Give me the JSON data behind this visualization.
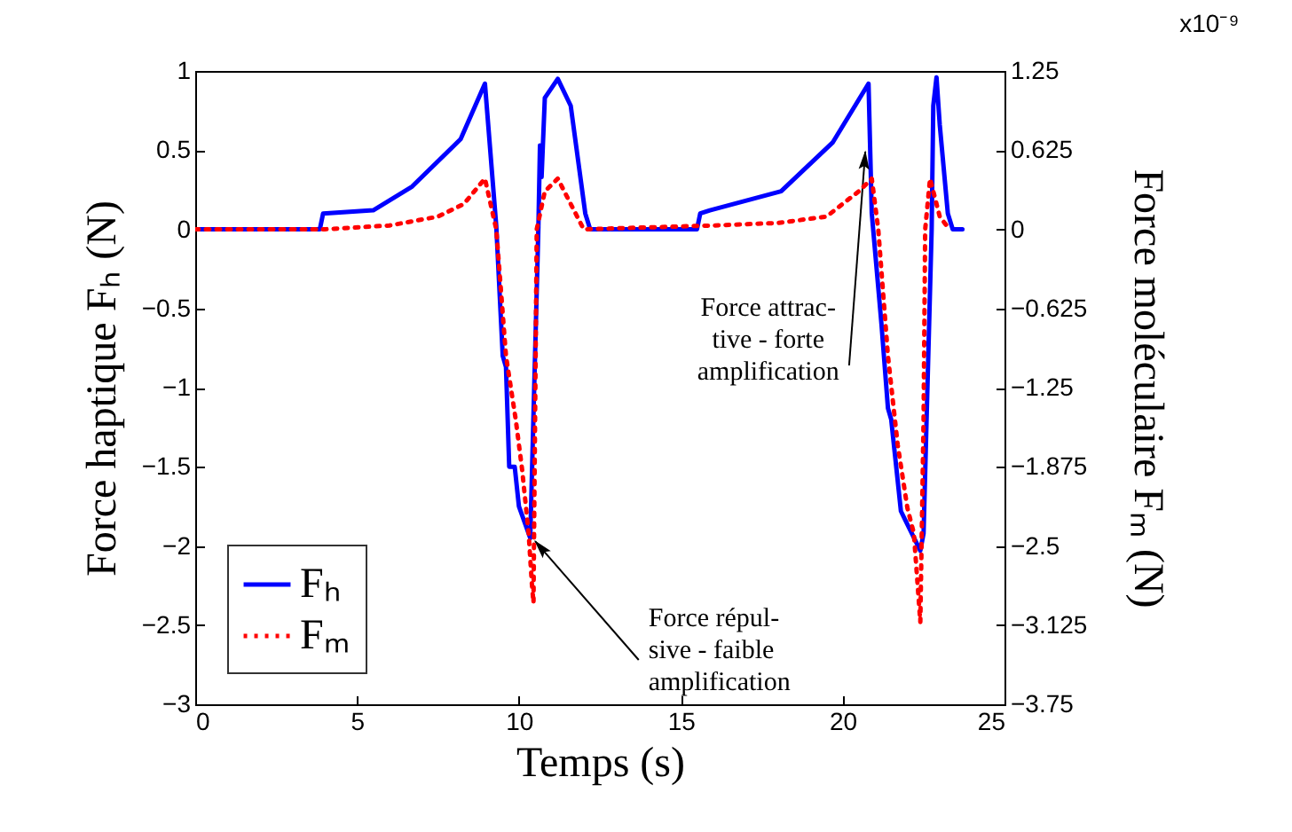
{
  "chart_data": {
    "type": "line",
    "xlabel": "Temps (s)",
    "ylabel": "Force haptique Fₕ (N)",
    "y2label": "Force moléculaire Fₘ (N)",
    "xlim": [
      0,
      25
    ],
    "xticks": [
      0,
      5,
      10,
      15,
      20,
      25
    ],
    "ylim": [
      -3,
      1
    ],
    "yticks": [
      -3,
      -2.5,
      -2,
      -1.5,
      -1,
      -0.5,
      0,
      0.5,
      1
    ],
    "y2lim": [
      -3.75,
      1.25
    ],
    "y2ticks": [
      -3.75,
      -3.125,
      -2.5,
      -1.875,
      -1.25,
      -0.625,
      0,
      0.625,
      1.25
    ],
    "legend": "bottom left",
    "grid": false,
    "series": [
      {
        "name": "Fₕ",
        "color": "#0000ff",
        "line_style": "solid",
        "x": [
          0,
          3.85,
          3.95,
          5.5,
          6.7,
          8.2,
          8.95,
          9.3,
          9.5,
          9.6,
          9.7,
          9.87,
          10.0,
          10.35,
          10.6,
          10.65,
          10.7,
          10.8,
          11.2,
          11.6,
          12.05,
          12.2,
          15.5,
          15.6,
          15.9,
          18.1,
          19.7,
          20.8,
          20.9,
          21.2,
          21.4,
          21.5,
          21.8,
          22.4,
          22.5,
          22.75,
          22.8,
          22.9,
          23.0,
          23.25,
          23.4,
          23.7
        ],
        "values": [
          0,
          0,
          0.1,
          0.12,
          0.27,
          0.57,
          0.92,
          0.02,
          -0.8,
          -0.87,
          -1.5,
          -1.5,
          -1.75,
          -1.95,
          0,
          0.53,
          0.33,
          0.83,
          0.95,
          0.78,
          0.1,
          0,
          0,
          0.1,
          0.12,
          0.24,
          0.55,
          0.92,
          0.1,
          -0.6,
          -1.13,
          -1.2,
          -1.78,
          -2.03,
          -1.92,
          0,
          0.78,
          0.96,
          0.66,
          0.1,
          0,
          0
        ]
      },
      {
        "name": "Fₘ",
        "color": "#ff0000",
        "line_style": "dotted",
        "axis": "y2",
        "x": [
          0,
          4,
          6,
          7.5,
          8.3,
          8.95,
          9.3,
          9.6,
          9.9,
          10.1,
          10.3,
          10.4,
          10.45,
          10.55,
          10.8,
          11.2,
          11.6,
          12.0,
          16,
          18,
          19.5,
          20.5,
          20.9,
          21.1,
          21.4,
          21.7,
          22.0,
          22.2,
          22.4,
          22.5,
          22.55,
          22.7,
          23.0,
          23.3
        ],
        "values": [
          0,
          0,
          0.03,
          0.1,
          0.2,
          0.4,
          0,
          -1,
          -1.5,
          -1.9,
          -2.4,
          -2.8,
          -2.95,
          0,
          0.3,
          0.4,
          0.2,
          0,
          0.03,
          0.05,
          0.1,
          0.3,
          0.4,
          0,
          -1,
          -1.7,
          -2.2,
          -2.4,
          -3.1,
          -1.5,
          0,
          0.4,
          0.1,
          0
        ]
      }
    ],
    "annotations": [
      {
        "text": "Force attrac-\ntive - forte\namplification",
        "x": 20.7,
        "y": 0.49
      },
      {
        "text": "Force répul-\nsive - faible\namplification",
        "x": 10.5,
        "y": -1.97
      },
      "x10⁻⁹"
    ]
  }
}
